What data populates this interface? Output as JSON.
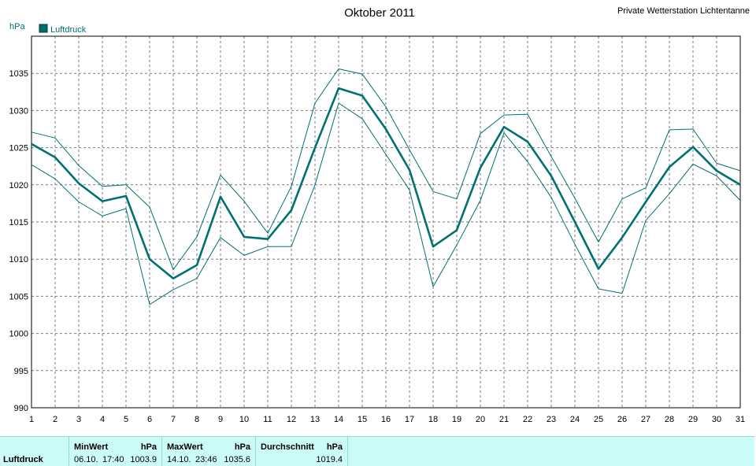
{
  "chart_data": {
    "type": "line",
    "title": "Oktober 2011",
    "station": "Private Wetterstation Lichtentanne",
    "ylabel": "hPa",
    "legend": [
      "Luftdruck"
    ],
    "legend_position": "top-left",
    "grid": true,
    "ylim": [
      990,
      1040
    ],
    "yticks": [
      990,
      995,
      1000,
      1005,
      1010,
      1015,
      1020,
      1025,
      1030,
      1035
    ],
    "x": [
      1,
      2,
      3,
      4,
      5,
      6,
      7,
      8,
      9,
      10,
      11,
      12,
      13,
      14,
      15,
      16,
      17,
      18,
      19,
      20,
      21,
      22,
      23,
      24,
      25,
      26,
      27,
      28,
      29,
      30,
      31
    ],
    "series": [
      {
        "name": "Luftdruck",
        "values": [
          1025.5,
          1023.7,
          1020.2,
          1017.8,
          1018.5,
          1010.0,
          1007.4,
          1009.2,
          1018.4,
          1013.0,
          1012.7,
          1016.6,
          1025.0,
          1033.0,
          1032.0,
          1027.5,
          1022.0,
          1011.7,
          1013.9,
          1022.3,
          1027.8,
          1025.8,
          1021.2,
          1015.0,
          1008.7,
          1012.9,
          1017.7,
          1022.4,
          1025.1,
          1021.9,
          1020.0
        ]
      },
      {
        "values": [
          1027.1,
          1026.3,
          1022.6,
          1019.8,
          1020.0,
          1017.0,
          1008.6,
          1013.0,
          1021.3,
          1017.8,
          1013.5,
          1019.8,
          1031.0,
          1035.6,
          1034.9,
          1030.5,
          1024.7,
          1019.1,
          1018.1,
          1026.9,
          1029.4,
          1029.5,
          1023.8,
          1018.2,
          1012.3,
          1018.1,
          1019.6,
          1027.4,
          1027.5,
          1022.9,
          1021.9
        ]
      },
      {
        "values": [
          1022.7,
          1020.8,
          1017.7,
          1015.8,
          1016.8,
          1003.9,
          1005.9,
          1007.4,
          1012.9,
          1010.5,
          1011.7,
          1011.7,
          1020.0,
          1031.0,
          1028.9,
          1024.1,
          1019.3,
          1006.3,
          1011.9,
          1017.9,
          1027.0,
          1023.1,
          1018.3,
          1012.0,
          1006.0,
          1005.4,
          1015.2,
          1018.8,
          1022.8,
          1021.2,
          1017.9
        ]
      }
    ]
  },
  "stats": {
    "row_label": "Luftdruck",
    "min": {
      "header": "MinWert",
      "unit": "hPa",
      "date": "06.10.",
      "time": "17:40",
      "value": "1003.9"
    },
    "max": {
      "header": "MaxWert",
      "unit": "hPa",
      "date": "14.10.",
      "time": "23:46",
      "value": "1035.6"
    },
    "avg": {
      "header": "Durchschnitt",
      "unit": "hPa",
      "value": "1019.4"
    }
  },
  "colors": {
    "series": "#007070",
    "grid": "#7a7a7a",
    "stats_bg": "#ccfcf8"
  }
}
